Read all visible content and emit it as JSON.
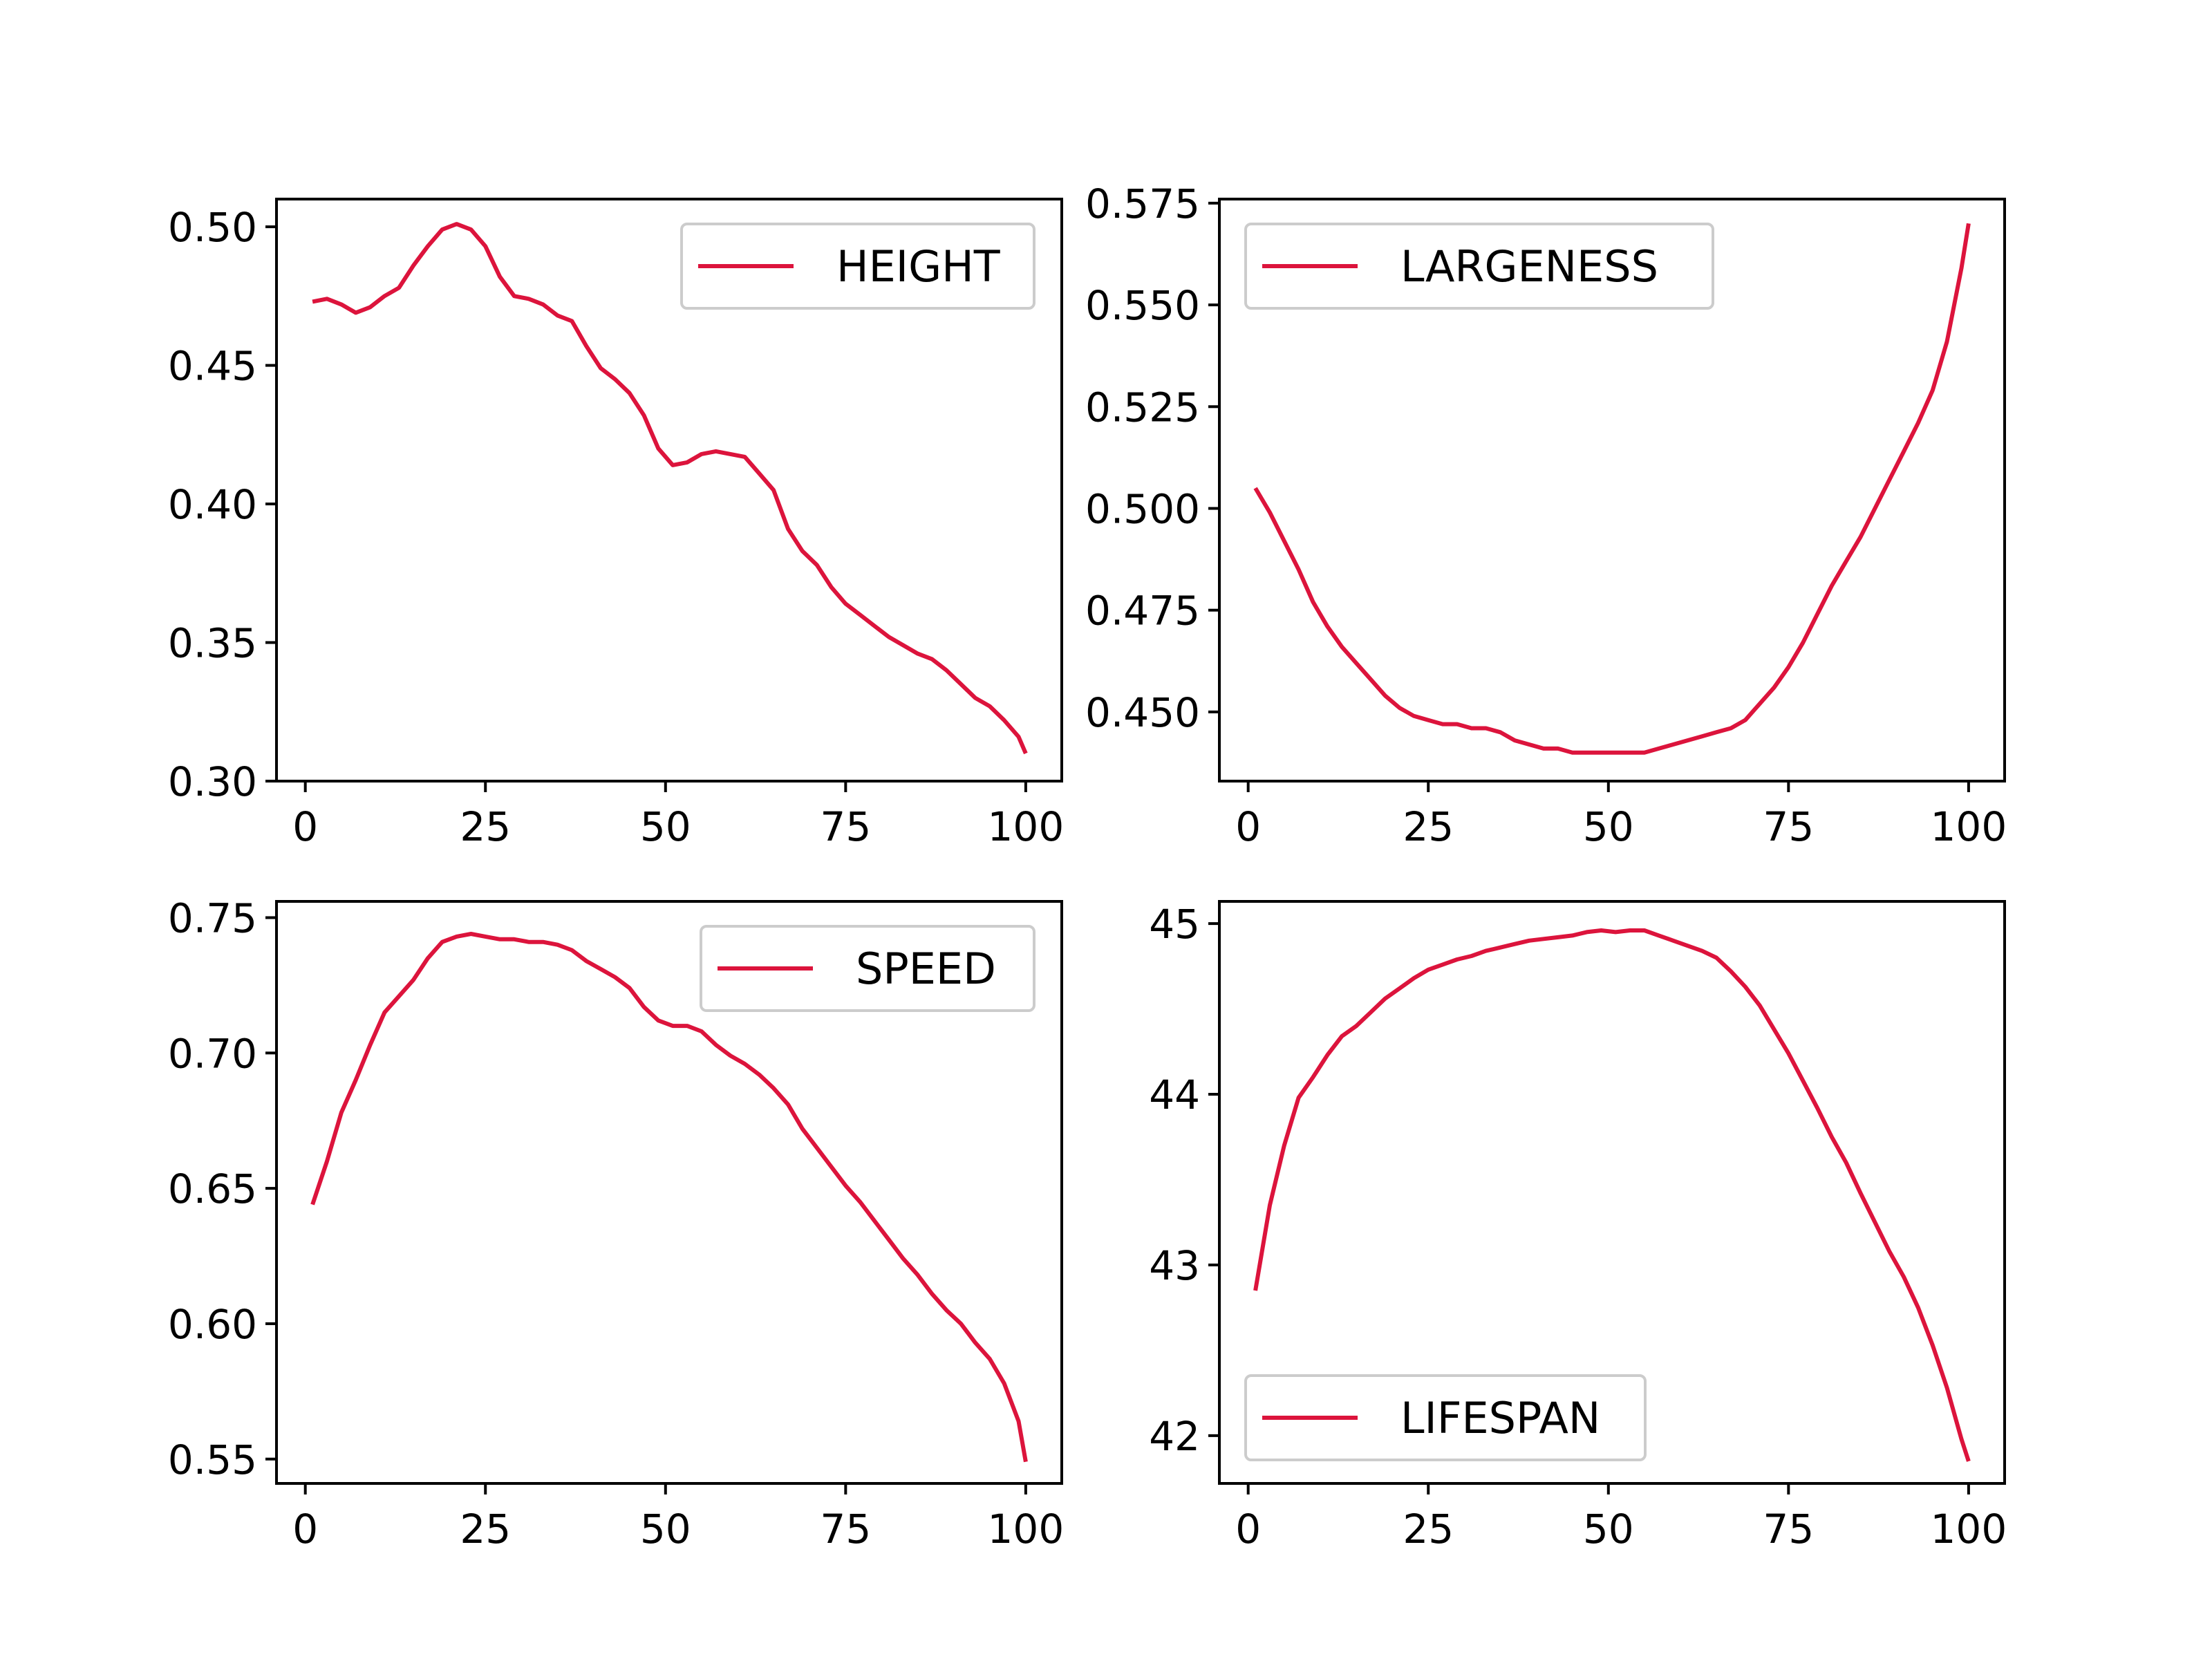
{
  "chart_data": [
    {
      "type": "line",
      "xlim": [
        -4,
        105
      ],
      "ylim": [
        0.3,
        0.51
      ],
      "xticks": [
        0,
        25,
        50,
        75,
        100
      ],
      "yticks": [
        0.3,
        0.35,
        0.4,
        0.45,
        0.5
      ],
      "xtick_labels": [
        "0",
        "25",
        "50",
        "75",
        "100"
      ],
      "ytick_labels": [
        "0.30",
        "0.35",
        "0.40",
        "0.45",
        "0.50"
      ],
      "legend": {
        "placement": "upper right"
      },
      "grid": false,
      "series": [
        {
          "name": "HEIGHT",
          "color": "#dc143c",
          "x": [
            1,
            3,
            5,
            7,
            9,
            11,
            13,
            15,
            17,
            19,
            21,
            23,
            25,
            27,
            29,
            31,
            33,
            35,
            37,
            39,
            41,
            43,
            45,
            47,
            49,
            51,
            53,
            55,
            57,
            59,
            61,
            63,
            65,
            67,
            69,
            71,
            73,
            75,
            77,
            79,
            81,
            83,
            85,
            87,
            89,
            91,
            93,
            95,
            97,
            99,
            100
          ],
          "y": [
            0.473,
            0.474,
            0.472,
            0.469,
            0.471,
            0.475,
            0.478,
            0.486,
            0.493,
            0.499,
            0.501,
            0.499,
            0.493,
            0.482,
            0.475,
            0.474,
            0.472,
            0.468,
            0.466,
            0.457,
            0.449,
            0.445,
            0.44,
            0.432,
            0.42,
            0.414,
            0.415,
            0.418,
            0.419,
            0.418,
            0.417,
            0.411,
            0.405,
            0.391,
            0.383,
            0.378,
            0.37,
            0.364,
            0.36,
            0.356,
            0.352,
            0.349,
            0.346,
            0.344,
            0.34,
            0.335,
            0.33,
            0.327,
            0.322,
            0.316,
            0.31
          ]
        }
      ]
    },
    {
      "type": "line",
      "xlim": [
        -4,
        105
      ],
      "ylim": [
        0.433,
        0.576
      ],
      "xticks": [
        0,
        25,
        50,
        75,
        100
      ],
      "yticks": [
        0.45,
        0.475,
        0.5,
        0.525,
        0.55,
        0.575
      ],
      "xtick_labels": [
        "0",
        "25",
        "50",
        "75",
        "100"
      ],
      "ytick_labels": [
        "0.450",
        "0.475",
        "0.500",
        "0.525",
        "0.550",
        "0.575"
      ],
      "legend": {
        "placement": "upper left"
      },
      "grid": false,
      "series": [
        {
          "name": "LARGENESS",
          "color": "#dc143c",
          "x": [
            1,
            3,
            5,
            7,
            9,
            11,
            13,
            15,
            17,
            19,
            21,
            23,
            25,
            27,
            29,
            31,
            33,
            35,
            37,
            39,
            41,
            43,
            45,
            47,
            49,
            51,
            53,
            55,
            57,
            59,
            61,
            63,
            65,
            67,
            69,
            71,
            73,
            75,
            77,
            79,
            81,
            83,
            85,
            87,
            89,
            91,
            93,
            95,
            97,
            99,
            100
          ],
          "y": [
            0.505,
            0.499,
            0.492,
            0.485,
            0.477,
            0.471,
            0.466,
            0.462,
            0.458,
            0.454,
            0.451,
            0.449,
            0.448,
            0.447,
            0.447,
            0.446,
            0.446,
            0.445,
            0.443,
            0.442,
            0.441,
            0.441,
            0.44,
            0.44,
            0.44,
            0.44,
            0.44,
            0.44,
            0.441,
            0.442,
            0.443,
            0.444,
            0.445,
            0.446,
            0.448,
            0.452,
            0.456,
            0.461,
            0.467,
            0.474,
            0.481,
            0.487,
            0.493,
            0.5,
            0.507,
            0.514,
            0.521,
            0.529,
            0.541,
            0.559,
            0.57
          ]
        }
      ]
    },
    {
      "type": "line",
      "xlim": [
        -4,
        105
      ],
      "ylim": [
        0.541,
        0.756
      ],
      "xticks": [
        0,
        25,
        50,
        75,
        100
      ],
      "yticks": [
        0.55,
        0.6,
        0.65,
        0.7,
        0.75
      ],
      "xtick_labels": [
        "0",
        "25",
        "50",
        "75",
        "100"
      ],
      "ytick_labels": [
        "0.55",
        "0.60",
        "0.65",
        "0.70",
        "0.75"
      ],
      "legend": {
        "placement": "upper right"
      },
      "grid": false,
      "series": [
        {
          "name": "SPEED",
          "color": "#dc143c",
          "x": [
            1,
            3,
            5,
            7,
            9,
            11,
            13,
            15,
            17,
            19,
            21,
            23,
            25,
            27,
            29,
            31,
            33,
            35,
            37,
            39,
            41,
            43,
            45,
            47,
            49,
            51,
            53,
            55,
            57,
            59,
            61,
            63,
            65,
            67,
            69,
            71,
            73,
            75,
            77,
            79,
            81,
            83,
            85,
            87,
            89,
            91,
            93,
            95,
            97,
            99,
            100
          ],
          "y": [
            0.644,
            0.66,
            0.678,
            0.69,
            0.703,
            0.715,
            0.721,
            0.727,
            0.735,
            0.741,
            0.743,
            0.744,
            0.743,
            0.742,
            0.742,
            0.741,
            0.741,
            0.74,
            0.738,
            0.734,
            0.731,
            0.728,
            0.724,
            0.717,
            0.712,
            0.71,
            0.71,
            0.708,
            0.703,
            0.699,
            0.696,
            0.692,
            0.687,
            0.681,
            0.672,
            0.665,
            0.658,
            0.651,
            0.645,
            0.638,
            0.631,
            0.624,
            0.618,
            0.611,
            0.605,
            0.6,
            0.593,
            0.587,
            0.578,
            0.564,
            0.549
          ]
        }
      ]
    },
    {
      "type": "line",
      "xlim": [
        -4,
        105
      ],
      "ylim": [
        41.72,
        45.13
      ],
      "xticks": [
        0,
        25,
        50,
        75,
        100
      ],
      "yticks": [
        42,
        43,
        44,
        45
      ],
      "xtick_labels": [
        "0",
        "25",
        "50",
        "75",
        "100"
      ],
      "ytick_labels": [
        "42",
        "43",
        "44",
        "45"
      ],
      "legend": {
        "placement": "lower left"
      },
      "grid": false,
      "series": [
        {
          "name": "LIFESPAN",
          "color": "#dc143c",
          "x": [
            1,
            3,
            5,
            7,
            9,
            11,
            13,
            15,
            17,
            19,
            21,
            23,
            25,
            27,
            29,
            31,
            33,
            35,
            37,
            39,
            41,
            43,
            45,
            47,
            49,
            51,
            53,
            55,
            57,
            59,
            61,
            63,
            65,
            67,
            69,
            71,
            73,
            75,
            77,
            79,
            81,
            83,
            85,
            87,
            89,
            91,
            93,
            95,
            97,
            99,
            100
          ],
          "y": [
            42.85,
            43.35,
            43.7,
            43.98,
            44.1,
            44.23,
            44.34,
            44.4,
            44.48,
            44.56,
            44.62,
            44.68,
            44.73,
            44.76,
            44.79,
            44.81,
            44.84,
            44.86,
            44.88,
            44.9,
            44.91,
            44.92,
            44.93,
            44.95,
            44.96,
            44.95,
            44.96,
            44.96,
            44.93,
            44.9,
            44.87,
            44.84,
            44.8,
            44.72,
            44.63,
            44.52,
            44.38,
            44.24,
            44.08,
            43.92,
            43.75,
            43.6,
            43.42,
            43.25,
            43.08,
            42.93,
            42.75,
            42.53,
            42.28,
            41.98,
            41.85
          ]
        }
      ]
    }
  ]
}
